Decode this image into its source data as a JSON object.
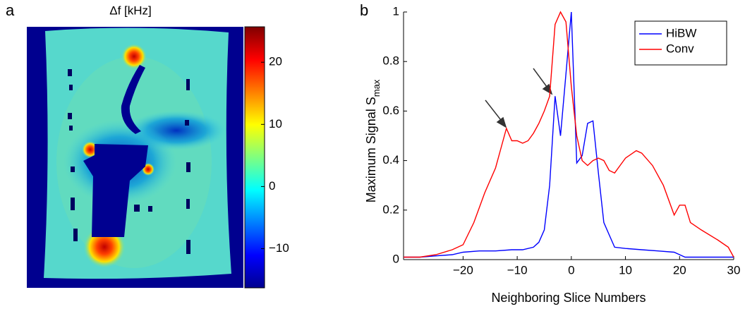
{
  "chart_data": [
    {
      "type": "image",
      "panel": "a",
      "title": "Δf [kHz]",
      "clim": [
        -16.3,
        25.7
      ],
      "cticks": [
        {
          "value": -10,
          "label": "−10"
        },
        0,
        10,
        20
      ]
    },
    {
      "type": "line",
      "panel": "b",
      "x_label": "Neighboring Slice Numbers",
      "y_label": "Maximum Signal S",
      "y_label_subscript": "max",
      "xlim": [
        -31,
        30
      ],
      "ylim": [
        0,
        1
      ],
      "xticks": [
        {
          "value": -20,
          "label": "−20"
        },
        {
          "value": -10,
          "label": "−10"
        },
        0,
        10,
        20,
        30
      ],
      "yticks": [
        0,
        0.2,
        0.4,
        0.6,
        0.8,
        1
      ],
      "legend": "upper right",
      "series": [
        {
          "name": "HiBW",
          "color": "#0000ff",
          "x": [
            -31,
            -28,
            -25,
            -22,
            -20,
            -17,
            -14,
            -11,
            -9,
            -7,
            -6,
            -5,
            -4,
            -3,
            -2,
            -1,
            0,
            1,
            2,
            3,
            4,
            5,
            6,
            7,
            8,
            10,
            13,
            16,
            19,
            20,
            21,
            25,
            30
          ],
          "values": [
            0.01,
            0.01,
            0.015,
            0.02,
            0.03,
            0.035,
            0.035,
            0.04,
            0.04,
            0.05,
            0.07,
            0.12,
            0.3,
            0.66,
            0.5,
            0.75,
            1.0,
            0.39,
            0.42,
            0.55,
            0.56,
            0.35,
            0.15,
            0.1,
            0.05,
            0.045,
            0.04,
            0.035,
            0.03,
            0.02,
            0.01,
            0.01,
            0.01
          ]
        },
        {
          "name": "Conv",
          "color": "#ff0000",
          "x": [
            -31,
            -28,
            -25,
            -22,
            -20,
            -18,
            -16,
            -14,
            -13,
            -12,
            -11,
            -10,
            -9,
            -8,
            -7,
            -6,
            -5,
            -4,
            -3,
            -2,
            -1,
            0,
            1,
            2,
            3,
            4,
            5,
            6,
            7,
            8,
            9,
            10,
            12,
            13,
            15,
            17,
            19,
            20,
            21,
            22,
            24,
            27,
            29,
            30
          ],
          "values": [
            0.01,
            0.01,
            0.02,
            0.04,
            0.06,
            0.15,
            0.27,
            0.37,
            0.45,
            0.53,
            0.48,
            0.48,
            0.47,
            0.48,
            0.51,
            0.55,
            0.6,
            0.66,
            0.95,
            1.0,
            0.96,
            0.7,
            0.5,
            0.4,
            0.38,
            0.4,
            0.41,
            0.4,
            0.36,
            0.35,
            0.38,
            0.41,
            0.44,
            0.43,
            0.38,
            0.3,
            0.18,
            0.22,
            0.22,
            0.15,
            0.12,
            0.08,
            0.05,
            0.01
          ]
        }
      ]
    }
  ]
}
